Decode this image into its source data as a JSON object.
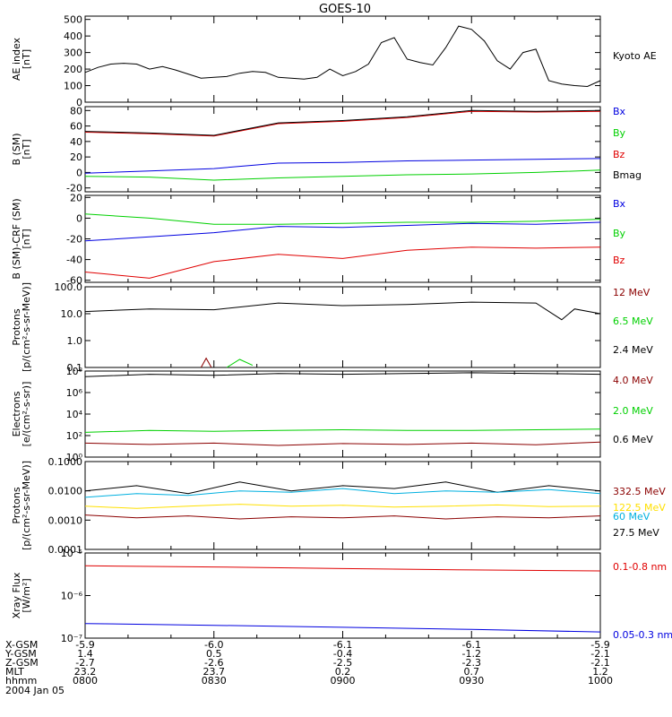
{
  "title": "GOES-10",
  "colors": {
    "black": "#000000",
    "red": "#e00000",
    "green": "#00d000",
    "blue": "#0000e0",
    "darkred": "#8b0000",
    "cyan": "#00b0e0",
    "yellow": "#ffe000"
  },
  "chart_data": [
    {
      "type": "line",
      "ylabel": "AE index\n[nT]",
      "yrange": [
        0,
        520
      ],
      "yscale": "linear",
      "yticks": [
        "0",
        "100",
        "200",
        "300",
        "400",
        "500"
      ],
      "ytick_values": [
        0,
        100,
        200,
        300,
        400,
        500
      ],
      "x_hours": [
        8.0,
        10.0
      ],
      "series": [
        {
          "name": "Kyoto AE",
          "color": "black",
          "x": [
            8.0,
            8.05,
            8.1,
            8.15,
            8.2,
            8.25,
            8.3,
            8.35,
            8.4,
            8.45,
            8.5,
            8.55,
            8.6,
            8.65,
            8.7,
            8.75,
            8.8,
            8.85,
            8.9,
            8.95,
            9.0,
            9.05,
            9.1,
            9.15,
            9.2,
            9.25,
            9.3,
            9.35,
            9.4,
            9.45,
            9.5,
            9.55,
            9.6,
            9.65,
            9.7,
            9.75,
            9.8,
            9.85,
            9.9,
            9.95,
            10.0
          ],
          "y": [
            180,
            210,
            230,
            235,
            230,
            200,
            215,
            195,
            170,
            145,
            150,
            155,
            175,
            185,
            180,
            150,
            145,
            140,
            150,
            200,
            160,
            185,
            230,
            360,
            390,
            260,
            240,
            225,
            330,
            460,
            440,
            370,
            250,
            200,
            300,
            320,
            130,
            110,
            100,
            95,
            130
          ]
        }
      ]
    },
    {
      "type": "line",
      "ylabel": "B (SM)\n[nT]",
      "yrange": [
        -25,
        85
      ],
      "yscale": "linear",
      "yticks": [
        "-20",
        "0",
        "20",
        "40",
        "60",
        "80"
      ],
      "ytick_values": [
        -20,
        0,
        20,
        40,
        60,
        80
      ],
      "x_hours": [
        8.0,
        10.0
      ],
      "labels": [
        "Bx",
        "By",
        "Bz",
        "Bmag"
      ],
      "series": [
        {
          "name": "Bx",
          "color": "blue",
          "x": [
            8.0,
            8.25,
            8.5,
            8.75,
            9.0,
            9.25,
            9.5,
            9.75,
            10.0
          ],
          "y": [
            -1,
            2,
            5,
            12,
            13,
            15,
            16,
            17,
            18
          ]
        },
        {
          "name": "By",
          "color": "green",
          "x": [
            8.0,
            8.25,
            8.5,
            8.75,
            9.0,
            9.25,
            9.5,
            9.75,
            10.0
          ],
          "y": [
            -5,
            -6,
            -10,
            -7,
            -5,
            -3,
            -2,
            0,
            3
          ]
        },
        {
          "name": "Bz",
          "color": "red",
          "x": [
            8.0,
            8.25,
            8.5,
            8.75,
            9.0,
            9.25,
            9.5,
            9.75,
            10.0
          ],
          "y": [
            52,
            50,
            47,
            63,
            66,
            71,
            79,
            78,
            79
          ]
        },
        {
          "name": "Bmag",
          "color": "black",
          "x": [
            8.0,
            8.25,
            8.5,
            8.75,
            9.0,
            9.25,
            9.5,
            9.75,
            10.0
          ],
          "y": [
            53,
            51,
            48,
            64,
            67,
            72,
            80,
            79,
            80
          ]
        }
      ]
    },
    {
      "type": "line",
      "ylabel": "B (SM)-CRF (SM)\n[nT]",
      "yrange": [
        -62,
        22
      ],
      "yscale": "linear",
      "yticks": [
        "-60",
        "-40",
        "-20",
        "0",
        "20"
      ],
      "ytick_values": [
        -60,
        -40,
        -20,
        0,
        20
      ],
      "x_hours": [
        8.0,
        10.0
      ],
      "series": [
        {
          "name": "Bx",
          "color": "blue",
          "x": [
            8.0,
            8.25,
            8.5,
            8.75,
            9.0,
            9.25,
            9.5,
            9.75,
            10.0
          ],
          "y": [
            -22,
            -18,
            -14,
            -8,
            -9,
            -7,
            -5,
            -6,
            -4
          ]
        },
        {
          "name": "By",
          "color": "green",
          "x": [
            8.0,
            8.25,
            8.5,
            8.75,
            9.0,
            9.25,
            9.5,
            9.75,
            10.0
          ],
          "y": [
            4,
            0,
            -6,
            -6,
            -5,
            -4,
            -4,
            -3,
            -1
          ]
        },
        {
          "name": "Bz",
          "color": "red",
          "x": [
            8.0,
            8.25,
            8.5,
            8.75,
            9.0,
            9.25,
            9.5,
            9.75,
            10.0
          ],
          "y": [
            -52,
            -58,
            -42,
            -35,
            -39,
            -31,
            -28,
            -29,
            -28
          ]
        }
      ]
    },
    {
      "type": "line",
      "ylabel": "Protons\n[p/(cm²-s-sr-MeV)]",
      "yrange": [
        0.1,
        100
      ],
      "yscale": "log",
      "yticks": [
        "0.1",
        "1.0",
        "10.0",
        "100.0"
      ],
      "ytick_values": [
        0.1,
        1,
        10,
        100
      ],
      "x_hours": [
        8.0,
        10.0
      ],
      "labels": [
        "12 MeV",
        "6.5 MeV",
        "2.4 MeV"
      ],
      "series": [
        {
          "name": "2.4 MeV",
          "color": "black",
          "x": [
            8.0,
            8.25,
            8.5,
            8.75,
            9.0,
            9.25,
            9.5,
            9.75,
            9.85,
            9.9,
            10.0
          ],
          "y": [
            12,
            15,
            14,
            25,
            20,
            22,
            27,
            25,
            6,
            15,
            10
          ]
        },
        {
          "name": "12 MeV",
          "color": "darkred",
          "x": [
            8.45,
            8.47,
            8.49
          ],
          "y": [
            0.1,
            0.22,
            0.1
          ]
        },
        {
          "name": "6.5 MeV",
          "color": "green",
          "x": [
            8.55,
            8.6,
            8.65
          ],
          "y": [
            0.1,
            0.2,
            0.12
          ]
        }
      ]
    },
    {
      "type": "line",
      "ylabel": "Electrons\n[e/(cm²-s-sr)]",
      "yrange": [
        1,
        100000000
      ],
      "yscale": "log",
      "yticks": [
        "10⁰",
        "10²",
        "10⁴",
        "10⁶",
        "10⁸"
      ],
      "ytick_values": [
        1,
        100,
        10000,
        1000000,
        100000000
      ],
      "x_hours": [
        8.0,
        10.0
      ],
      "labels": [
        "4.0 MeV",
        "2.0 MeV",
        "0.6 MeV"
      ],
      "series": [
        {
          "name": "0.6 MeV",
          "color": "black",
          "x": [
            8.0,
            8.25,
            8.5,
            8.75,
            9.0,
            9.25,
            9.5,
            9.75,
            10.0
          ],
          "y": [
            30000000,
            50000000,
            40000000,
            60000000,
            50000000,
            60000000,
            70000000,
            60000000,
            50000000
          ]
        },
        {
          "name": "2.0 MeV",
          "color": "green",
          "x": [
            8.0,
            8.25,
            8.5,
            8.75,
            9.0,
            9.25,
            9.5,
            9.75,
            10.0
          ],
          "y": [
            200,
            300,
            250,
            300,
            350,
            300,
            300,
            350,
            400
          ]
        },
        {
          "name": "4.0 MeV",
          "color": "darkred",
          "x": [
            8.0,
            8.25,
            8.5,
            8.75,
            9.0,
            9.25,
            9.5,
            9.75,
            10.0
          ],
          "y": [
            20,
            15,
            20,
            12,
            18,
            15,
            20,
            14,
            25
          ]
        }
      ]
    },
    {
      "type": "line",
      "ylabel": "Protons\n[p/(cm²-s-sr-MeV)]",
      "yrange": [
        0.0001,
        0.1
      ],
      "yscale": "log",
      "yticks": [
        "0.0001",
        "0.0010",
        "0.0100",
        "0.1000"
      ],
      "ytick_values": [
        0.0001,
        0.001,
        0.01,
        0.1
      ],
      "x_hours": [
        8.0,
        10.0
      ],
      "labels": [
        "332.5 MeV",
        "122.5 MeV",
        "60 MeV",
        "27.5 MeV"
      ],
      "series": [
        {
          "name": "27.5 MeV",
          "color": "black",
          "x": [
            8.0,
            8.2,
            8.4,
            8.6,
            8.8,
            9.0,
            9.2,
            9.4,
            9.6,
            9.8,
            10.0
          ],
          "y": [
            0.01,
            0.015,
            0.008,
            0.02,
            0.01,
            0.015,
            0.012,
            0.02,
            0.009,
            0.015,
            0.01
          ]
        },
        {
          "name": "60 MeV",
          "color": "cyan",
          "x": [
            8.0,
            8.2,
            8.4,
            8.6,
            8.8,
            9.0,
            9.2,
            9.4,
            9.6,
            9.8,
            10.0
          ],
          "y": [
            0.006,
            0.008,
            0.007,
            0.01,
            0.009,
            0.012,
            0.008,
            0.01,
            0.009,
            0.011,
            0.008
          ]
        },
        {
          "name": "122.5 MeV",
          "color": "yellow",
          "x": [
            8.0,
            8.2,
            8.4,
            8.6,
            8.8,
            9.0,
            9.2,
            9.4,
            9.6,
            9.8,
            10.0
          ],
          "y": [
            0.003,
            0.0025,
            0.003,
            0.0035,
            0.003,
            0.0032,
            0.0028,
            0.003,
            0.0033,
            0.0029,
            0.003
          ]
        },
        {
          "name": "332.5 MeV",
          "color": "darkred",
          "x": [
            8.0,
            8.2,
            8.4,
            8.6,
            8.8,
            9.0,
            9.2,
            9.4,
            9.6,
            9.8,
            10.0
          ],
          "y": [
            0.0015,
            0.0012,
            0.0014,
            0.0011,
            0.0013,
            0.0012,
            0.0014,
            0.0011,
            0.0013,
            0.0012,
            0.0014
          ]
        }
      ]
    },
    {
      "type": "line",
      "ylabel": "Xray Flux\n[W/m²]",
      "yrange": [
        1e-07,
        1e-05
      ],
      "yscale": "log",
      "yticks": [
        "10⁻⁷",
        "10⁻⁶",
        "10⁻⁵"
      ],
      "ytick_values": [
        1e-07,
        1e-06,
        1e-05
      ],
      "x_hours": [
        8.0,
        10.0
      ],
      "labels": [
        "0.1-0.8 nm",
        "0.05-0.3 nm"
      ],
      "series": [
        {
          "name": "0.1-0.8 nm",
          "color": "red",
          "x": [
            8.0,
            8.5,
            9.0,
            9.5,
            10.0
          ],
          "y": [
            5e-06,
            4.7e-06,
            4.3e-06,
            4e-06,
            3.8e-06
          ]
        },
        {
          "name": "0.05-0.3 nm",
          "color": "blue",
          "x": [
            8.0,
            8.5,
            9.0,
            9.5,
            10.0
          ],
          "y": [
            2.2e-07,
            2e-07,
            1.8e-07,
            1.6e-07,
            1.4e-07
          ]
        }
      ]
    }
  ],
  "orbit_table": {
    "row_labels": [
      "X-GSM",
      "Y-GSM",
      "Z-GSM",
      "MLT",
      "hhmm"
    ],
    "columns": [
      [
        "-5.9",
        "1.4",
        "-2.7",
        "23.2",
        "0800"
      ],
      [
        "-6.0",
        "0.5",
        "-2.6",
        "23.7",
        "0830"
      ],
      [
        "-6.1",
        "-0.4",
        "-2.5",
        "0.2",
        "0900"
      ],
      [
        "-6.1",
        "-1.2",
        "-2.3",
        "0.7",
        "0930"
      ],
      [
        "-5.9",
        "-2.1",
        "-2.1",
        "1.2",
        "1000"
      ]
    ],
    "date": "2004 Jan 05"
  }
}
